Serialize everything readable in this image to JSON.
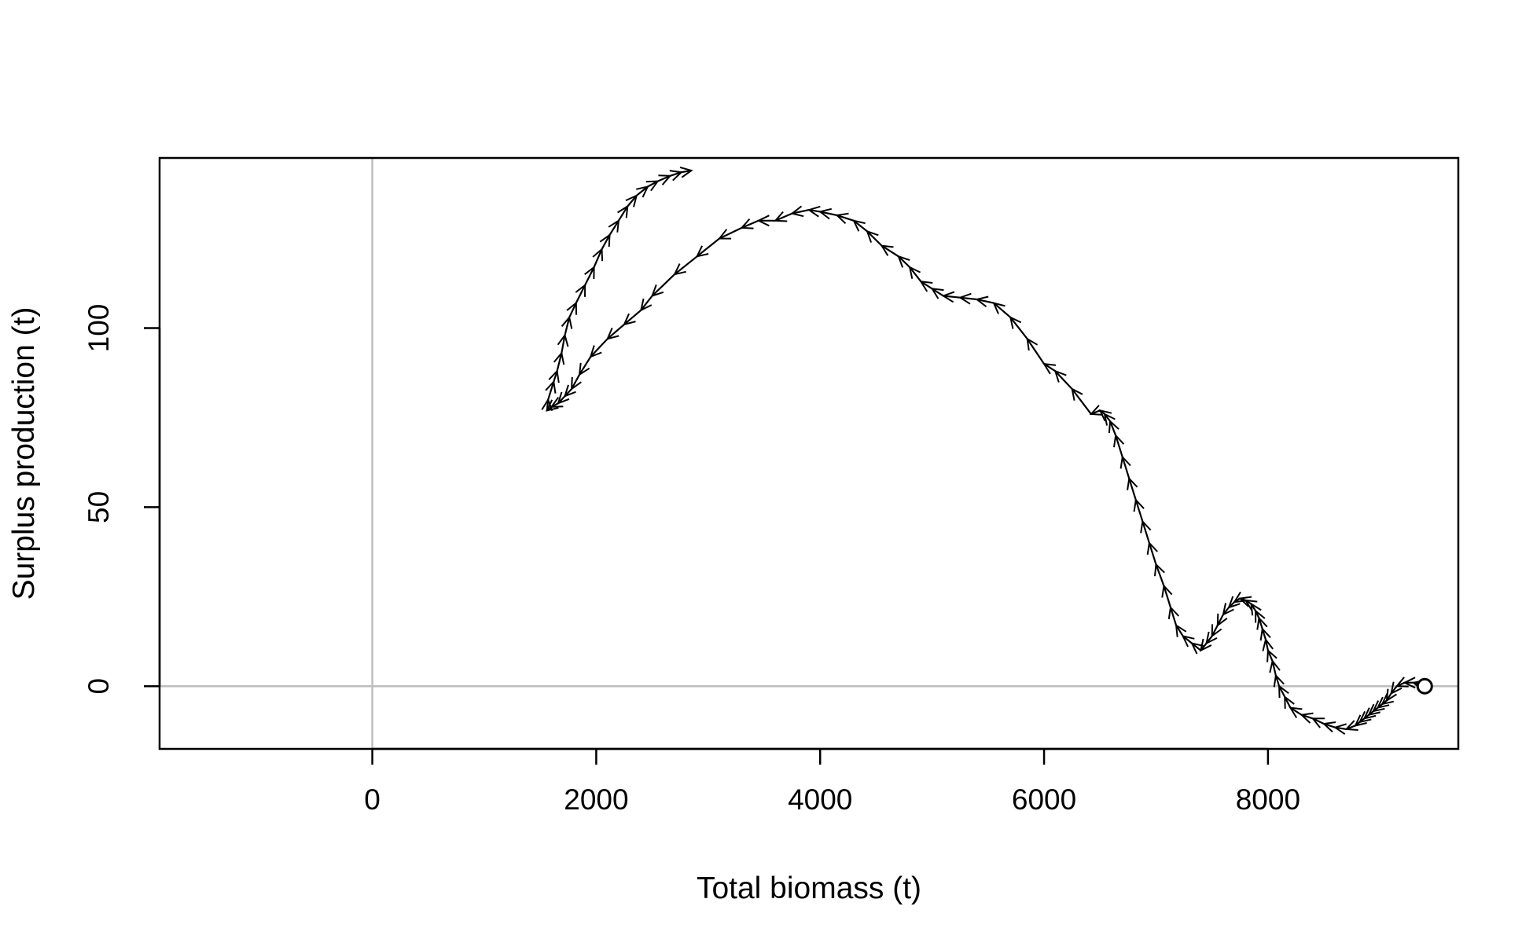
{
  "chart_data": {
    "type": "line",
    "title": "",
    "xlabel": "Total biomass (t)",
    "ylabel": "Surplus production (t)",
    "xlim": [
      -1900,
      9700
    ],
    "ylim": [
      -17.5,
      147.5
    ],
    "xticks": [
      0,
      2000,
      4000,
      6000,
      8000
    ],
    "xtick_labels": [
      "0",
      "2000",
      "4000",
      "6000",
      "8000"
    ],
    "yticks": [
      0,
      50,
      100
    ],
    "ytick_labels": [
      "0",
      "50",
      "100"
    ],
    "reference_lines": {
      "x": 0,
      "y": 0
    },
    "grid": false,
    "legend": "none",
    "colors": {
      "line": "#000000",
      "reference": "#bebebe",
      "frame": "#000000"
    },
    "start_marker": "open-circle",
    "direction_markers": "arrowheads",
    "series": [
      {
        "x": [
          9400,
          9360,
          9300,
          9220,
          9150,
          9100,
          9060,
          9020,
          8980,
          8940,
          8900,
          8860,
          8820,
          8780,
          8700,
          8600,
          8500,
          8400,
          8300,
          8200,
          8150,
          8100,
          8070,
          8040,
          8000,
          7980,
          7950,
          7920,
          7890,
          7850,
          7800,
          7750,
          7700,
          7650,
          7600,
          7550,
          7500,
          7450,
          7400,
          7320,
          7240,
          7180,
          7130,
          7070,
          7000,
          6940,
          6880,
          6820,
          6760,
          6700,
          6640,
          6590,
          6540,
          6500,
          6420,
          6250,
          6100,
          6000,
          5850,
          5700,
          5550,
          5400,
          5250,
          5100,
          5000,
          4900,
          4800,
          4700,
          4550,
          4420,
          4300,
          4150,
          4000,
          3900,
          3750,
          3600,
          3450,
          3300,
          3100,
          2900,
          2700,
          2500,
          2400,
          2250,
          2100,
          1950,
          1850,
          1780,
          1720,
          1660,
          1600,
          1560,
          1570,
          1620,
          1650,
          1690,
          1720,
          1760,
          1820,
          1900,
          1980,
          2050,
          2120,
          2200,
          2280,
          2360,
          2460,
          2550,
          2660,
          2760,
          2850
        ],
        "y": [
          0,
          0.5,
          1,
          1,
          0,
          -2,
          -4,
          -5,
          -6,
          -7,
          -8,
          -9,
          -10,
          -11,
          -12,
          -11.5,
          -10.5,
          -9,
          -8,
          -6,
          -3,
          0,
          3,
          7,
          10,
          13,
          16,
          19,
          21,
          23,
          24,
          24.5,
          23.5,
          22,
          20,
          17,
          14,
          12,
          10,
          12,
          14,
          17,
          22,
          28,
          34,
          40,
          46,
          52,
          58,
          64,
          70,
          74,
          76,
          77,
          76,
          83,
          88,
          90,
          97,
          103,
          107,
          108,
          108.5,
          109,
          111,
          113,
          117,
          120,
          123,
          127,
          130,
          131.5,
          132.5,
          133,
          132,
          130,
          130,
          128,
          125,
          120,
          115,
          109,
          105,
          101,
          97,
          92,
          87,
          83,
          81,
          79,
          78,
          77,
          80,
          85,
          88,
          93,
          98,
          103,
          107,
          112,
          117,
          122,
          126,
          130,
          134,
          137,
          139.5,
          141,
          142.5,
          143.5,
          144
        ]
      }
    ]
  }
}
